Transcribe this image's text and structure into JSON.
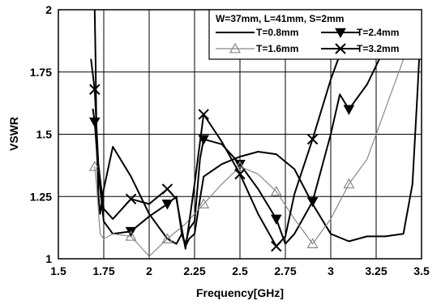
{
  "chart_data": {
    "type": "line",
    "title": "",
    "xlabel": "Frequency[GHz]",
    "ylabel": "VSWR",
    "xlim": [
      1.5,
      3.5
    ],
    "ylim": [
      1,
      2
    ],
    "x_ticks": [
      "1.5",
      "1.75",
      "2",
      "2.25",
      "2.5",
      "2.75",
      "3",
      "3.25",
      "3.5"
    ],
    "y_ticks": [
      "1",
      "1.25",
      "1.5",
      "1.75",
      "2"
    ],
    "grid": true,
    "legend_position": "top-right",
    "legend_title": "W=37mm, L=41mm, S=2mm",
    "series": [
      {
        "name": "T=0.8mm",
        "marker": "none",
        "color": "#000000",
        "x": [
          1.7,
          1.705,
          1.71,
          1.72,
          1.73,
          1.75,
          1.8,
          1.9,
          2.0,
          2.1,
          2.15,
          2.18,
          2.2,
          2.22,
          2.25,
          2.28,
          2.3,
          2.4,
          2.5,
          2.6,
          2.7,
          2.8,
          2.9,
          3.0,
          3.1,
          3.2,
          3.3,
          3.4,
          3.45,
          3.48,
          3.5
        ],
        "y": [
          2.0,
          1.8,
          1.5,
          1.26,
          1.18,
          1.28,
          1.45,
          1.33,
          1.18,
          1.08,
          1.06,
          1.1,
          1.05,
          1.08,
          1.1,
          1.24,
          1.33,
          1.38,
          1.41,
          1.43,
          1.42,
          1.36,
          1.22,
          1.1,
          1.07,
          1.09,
          1.09,
          1.1,
          1.3,
          1.7,
          2.0
        ]
      },
      {
        "name": "T=2.4mm",
        "marker": "triangle-down",
        "color": "#000000",
        "x": [
          1.69,
          1.7,
          1.72,
          1.75,
          1.8,
          1.9,
          2.0,
          2.1,
          2.15,
          2.18,
          2.2,
          2.22,
          2.25,
          2.28,
          2.3,
          2.4,
          2.5,
          2.6,
          2.7,
          2.75,
          2.8,
          2.9,
          3.0,
          3.05,
          3.1,
          3.2,
          3.3,
          3.4,
          3.45,
          3.48,
          3.5
        ],
        "y": [
          1.6,
          1.55,
          1.35,
          1.15,
          1.1,
          1.11,
          1.17,
          1.22,
          1.25,
          1.1,
          1.06,
          1.12,
          1.15,
          1.4,
          1.48,
          1.46,
          1.38,
          1.28,
          1.16,
          1.06,
          1.1,
          1.23,
          1.5,
          1.66,
          1.6,
          1.7,
          1.85,
          1.95,
          1.9,
          1.89,
          1.89
        ]
      },
      {
        "name": "T=1.6mm",
        "marker": "triangle-up",
        "color": "#888888",
        "x": [
          1.7,
          1.71,
          1.72,
          1.73,
          1.75,
          1.8,
          1.9,
          2.0,
          2.1,
          2.2,
          2.25,
          2.3,
          2.4,
          2.5,
          2.6,
          2.7,
          2.8,
          2.9,
          3.0,
          3.1,
          3.2,
          3.3,
          3.4,
          3.45,
          3.5
        ],
        "y": [
          1.37,
          1.3,
          1.2,
          1.1,
          1.08,
          1.1,
          1.09,
          1.01,
          1.08,
          1.14,
          1.18,
          1.22,
          1.3,
          1.37,
          1.34,
          1.27,
          1.16,
          1.06,
          1.16,
          1.3,
          1.4,
          1.6,
          1.8,
          1.95,
          2.0
        ]
      },
      {
        "name": "T=3.2mm",
        "marker": "x",
        "color": "#000000",
        "x": [
          1.68,
          1.7,
          1.72,
          1.75,
          1.8,
          1.9,
          2.0,
          2.1,
          2.15,
          2.2,
          2.25,
          2.3,
          2.4,
          2.5,
          2.6,
          2.7,
          2.75,
          2.8,
          2.9,
          3.0,
          3.1,
          3.2,
          3.4,
          3.49,
          3.5
        ],
        "y": [
          1.8,
          1.68,
          1.38,
          1.2,
          1.16,
          1.24,
          1.22,
          1.28,
          1.24,
          1.04,
          1.3,
          1.58,
          1.47,
          1.34,
          1.18,
          1.05,
          1.09,
          1.26,
          1.48,
          1.72,
          1.92,
          2.0,
          2.0,
          1.97,
          1.93
        ]
      }
    ]
  }
}
